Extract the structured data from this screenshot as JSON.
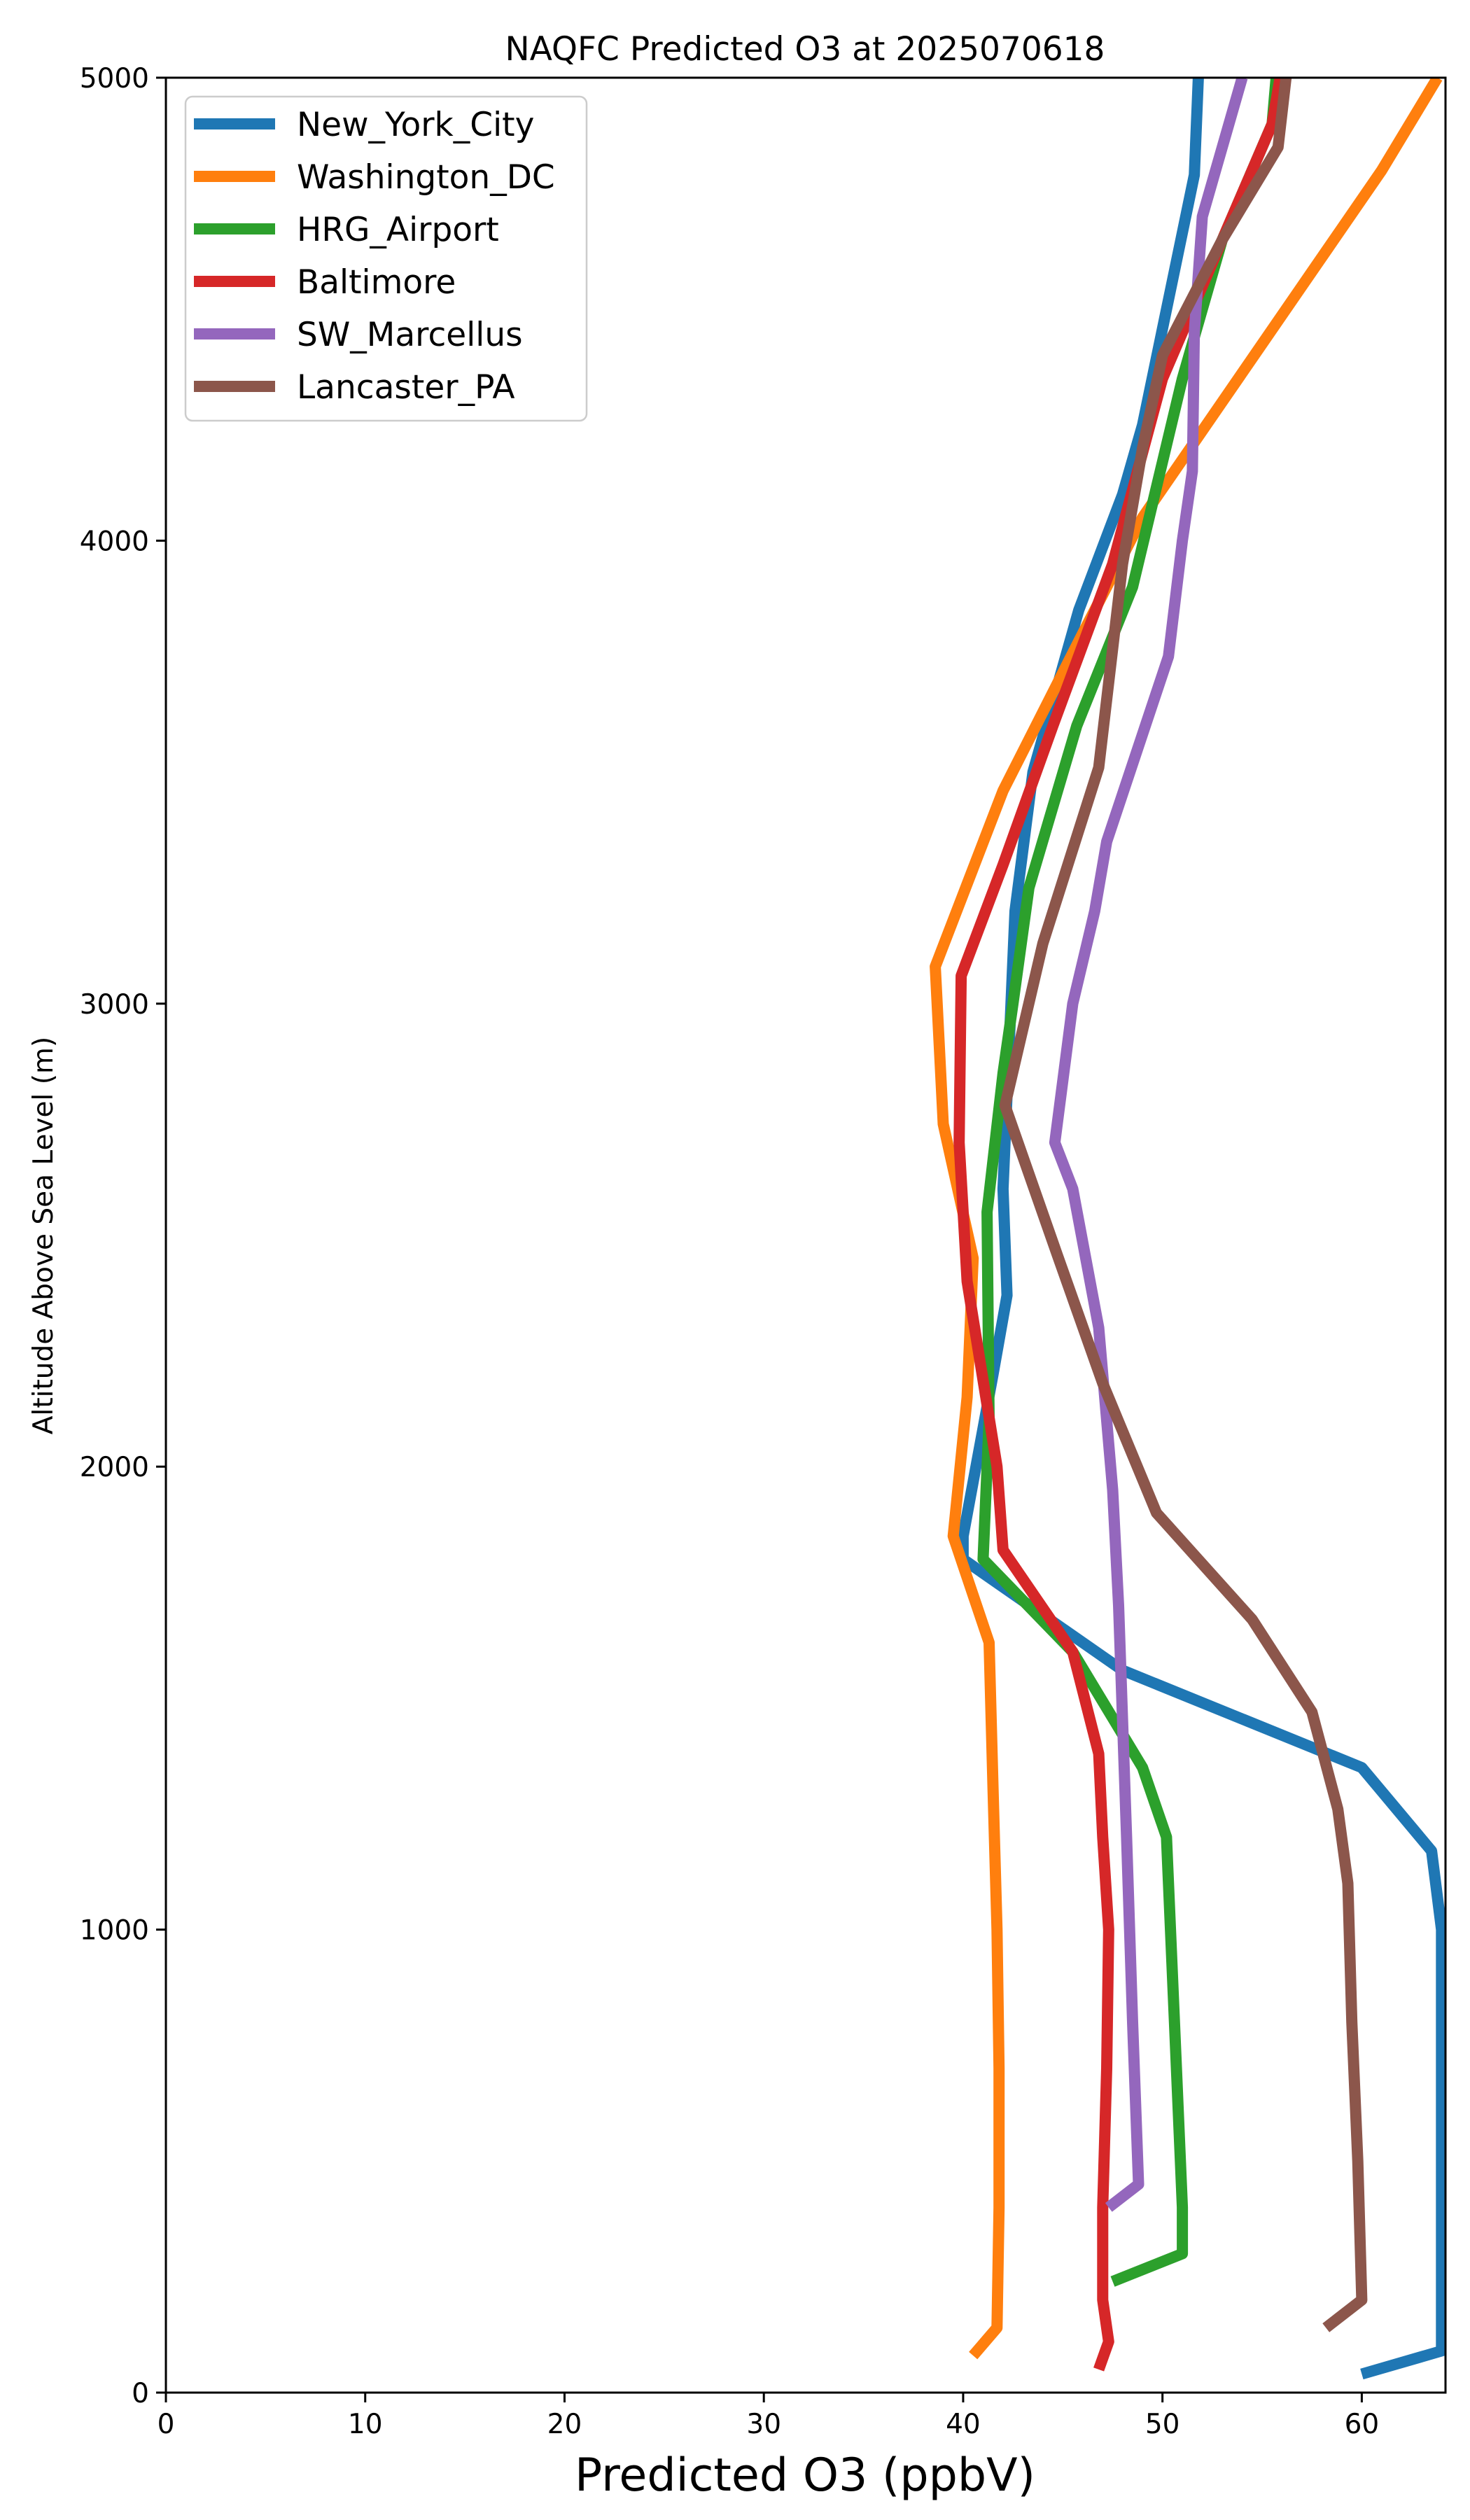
{
  "chart_data": {
    "type": "line",
    "title": "NAQFC Predicted O3 at 2025070618",
    "xlabel": "Predicted O3 (ppbV)",
    "ylabel": "Altitude Above Sea Level (m)",
    "xlim": [
      0,
      64.2
    ],
    "ylim": [
      0,
      5000
    ],
    "xticks": [
      0,
      10,
      20,
      30,
      40,
      50,
      60
    ],
    "yticks": [
      0,
      1000,
      2000,
      3000,
      4000,
      5000
    ],
    "grid": false,
    "legend": "top-left",
    "series": [
      {
        "name": "New_York_City",
        "color": "#1f77b4",
        "points": [
          [
            60.0,
            40
          ],
          [
            64.0,
            90
          ],
          [
            64.0,
            200
          ],
          [
            64.0,
            400
          ],
          [
            64.0,
            700
          ],
          [
            64.0,
            1000
          ],
          [
            63.5,
            1170
          ],
          [
            60.0,
            1350
          ],
          [
            48.0,
            1560
          ],
          [
            40.0,
            1800
          ],
          [
            40.0,
            1850
          ],
          [
            41.5,
            2200
          ],
          [
            42.2,
            2370
          ],
          [
            42.0,
            2600
          ],
          [
            42.3,
            2900
          ],
          [
            42.6,
            3200
          ],
          [
            43.5,
            3500
          ],
          [
            45.8,
            3850
          ],
          [
            48.0,
            4100
          ],
          [
            49.0,
            4250
          ],
          [
            51.6,
            4790
          ],
          [
            51.8,
            5000
          ]
        ]
      },
      {
        "name": "Washington_DC",
        "color": "#ff7f0e",
        "points": [
          [
            40.5,
            80
          ],
          [
            41.7,
            140
          ],
          [
            41.8,
            400
          ],
          [
            41.8,
            700
          ],
          [
            41.7,
            1000
          ],
          [
            41.5,
            1300
          ],
          [
            41.3,
            1620
          ],
          [
            39.5,
            1850
          ],
          [
            40.2,
            2150
          ],
          [
            40.5,
            2450
          ],
          [
            39.0,
            2740
          ],
          [
            38.6,
            3080
          ],
          [
            42.0,
            3460
          ],
          [
            46.0,
            3800
          ],
          [
            49.0,
            4050
          ],
          [
            53.0,
            4300
          ],
          [
            57.0,
            4550
          ],
          [
            61.0,
            4800
          ],
          [
            63.8,
            5000
          ]
        ]
      },
      {
        "name": "HRG_Airport",
        "color": "#2ca02c",
        "points": [
          [
            47.5,
            240
          ],
          [
            51.0,
            300
          ],
          [
            51.0,
            400
          ],
          [
            50.6,
            800
          ],
          [
            50.2,
            1200
          ],
          [
            49.0,
            1350
          ],
          [
            45.5,
            1600
          ],
          [
            41.0,
            1800
          ],
          [
            41.3,
            2100
          ],
          [
            41.2,
            2550
          ],
          [
            42.0,
            2850
          ],
          [
            42.5,
            3000
          ],
          [
            43.3,
            3250
          ],
          [
            45.7,
            3600
          ],
          [
            48.5,
            3900
          ],
          [
            51.0,
            4350
          ],
          [
            53.0,
            4650
          ],
          [
            55.5,
            4900
          ],
          [
            55.7,
            5000
          ]
        ]
      },
      {
        "name": "Baltimore",
        "color": "#d62728",
        "points": [
          [
            46.8,
            50
          ],
          [
            47.3,
            110
          ],
          [
            47.0,
            200
          ],
          [
            47.0,
            400
          ],
          [
            47.2,
            700
          ],
          [
            47.3,
            1000
          ],
          [
            47.0,
            1200
          ],
          [
            46.8,
            1380
          ],
          [
            45.5,
            1600
          ],
          [
            42.0,
            1820
          ],
          [
            41.7,
            2000
          ],
          [
            40.2,
            2400
          ],
          [
            39.8,
            2700
          ],
          [
            39.9,
            3060
          ],
          [
            42.0,
            3300
          ],
          [
            44.5,
            3600
          ],
          [
            47.5,
            3950
          ],
          [
            50.0,
            4350
          ],
          [
            53.0,
            4650
          ],
          [
            55.5,
            4900
          ],
          [
            55.9,
            5000
          ]
        ]
      },
      {
        "name": "SW_Marcellus",
        "color": "#9467bd",
        "points": [
          [
            47.3,
            400
          ],
          [
            48.8,
            450
          ],
          [
            48.5,
            800
          ],
          [
            48.2,
            1200
          ],
          [
            47.8,
            1700
          ],
          [
            47.5,
            1950
          ],
          [
            46.8,
            2300
          ],
          [
            45.5,
            2600
          ],
          [
            44.6,
            2700
          ],
          [
            45.5,
            3000
          ],
          [
            46.6,
            3200
          ],
          [
            47.2,
            3350
          ],
          [
            50.3,
            3750
          ],
          [
            51.0,
            4000
          ],
          [
            51.5,
            4150
          ],
          [
            51.6,
            4450
          ],
          [
            52.0,
            4700
          ],
          [
            54.0,
            5000
          ]
        ]
      },
      {
        "name": "Lancaster_PA",
        "color": "#8c564b",
        "points": [
          [
            58.2,
            140
          ],
          [
            60.0,
            200
          ],
          [
            59.8,
            500
          ],
          [
            59.5,
            800
          ],
          [
            59.3,
            1100
          ],
          [
            58.8,
            1260
          ],
          [
            57.5,
            1470
          ],
          [
            54.5,
            1670
          ],
          [
            49.7,
            1900
          ],
          [
            47.0,
            2180
          ],
          [
            44.7,
            2460
          ],
          [
            42.1,
            2780
          ],
          [
            44.0,
            3130
          ],
          [
            46.8,
            3510
          ],
          [
            48.0,
            3950
          ],
          [
            49.0,
            4200
          ],
          [
            50.0,
            4400
          ],
          [
            53.0,
            4650
          ],
          [
            55.8,
            4850
          ],
          [
            56.2,
            5000
          ]
        ]
      }
    ]
  }
}
